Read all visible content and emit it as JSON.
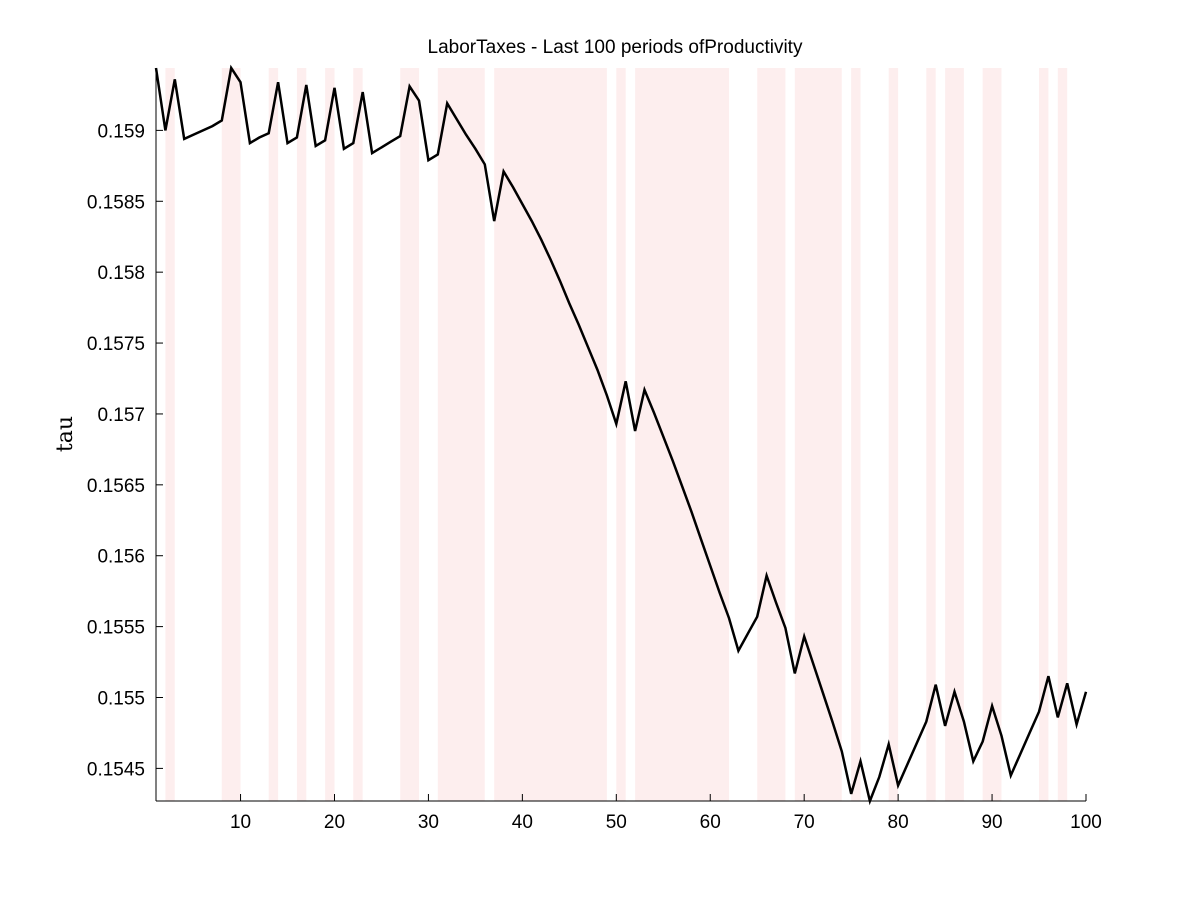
{
  "chart_data": {
    "type": "line",
    "title": "LaborTaxes - Last 100 periods ofProductivity",
    "xlabel": "",
    "ylabel": "tau",
    "xlim": [
      1,
      100
    ],
    "ylim": [
      0.15427,
      0.15944
    ],
    "x_ticks": [
      10,
      20,
      30,
      40,
      50,
      60,
      70,
      80,
      90,
      100
    ],
    "y_ticks": [
      0.1545,
      0.155,
      0.1555,
      0.156,
      0.1565,
      0.157,
      0.1575,
      0.158,
      0.1585,
      0.159
    ],
    "grid": false,
    "legend": "none",
    "line_color": "#000000",
    "shade_color": "#fdeeee",
    "shaded_periods": [
      [
        2,
        3
      ],
      [
        8,
        10
      ],
      [
        13,
        14
      ],
      [
        16,
        17
      ],
      [
        19,
        20
      ],
      [
        22,
        23
      ],
      [
        27,
        29
      ],
      [
        31,
        36
      ],
      [
        37,
        49
      ],
      [
        50,
        51
      ],
      [
        52,
        62
      ],
      [
        65,
        68
      ],
      [
        69,
        74
      ],
      [
        75,
        76
      ],
      [
        79,
        80
      ],
      [
        83,
        84
      ],
      [
        85,
        87
      ],
      [
        89,
        91
      ],
      [
        95,
        96
      ],
      [
        97,
        98
      ]
    ],
    "x": [
      1,
      2,
      3,
      4,
      5,
      6,
      7,
      8,
      9,
      10,
      11,
      12,
      13,
      14,
      15,
      16,
      17,
      18,
      19,
      20,
      21,
      22,
      23,
      24,
      25,
      26,
      27,
      28,
      29,
      30,
      31,
      32,
      33,
      34,
      35,
      36,
      37,
      38,
      39,
      40,
      41,
      42,
      43,
      44,
      45,
      46,
      47,
      48,
      49,
      50,
      51,
      52,
      53,
      54,
      55,
      56,
      57,
      58,
      59,
      60,
      61,
      62,
      63,
      64,
      65,
      66,
      67,
      68,
      69,
      70,
      71,
      72,
      73,
      74,
      75,
      76,
      77,
      78,
      79,
      80,
      81,
      82,
      83,
      84,
      85,
      86,
      87,
      88,
      89,
      90,
      91,
      92,
      93,
      94,
      95,
      96,
      97,
      98,
      99,
      100
    ],
    "values": [
      0.15944,
      0.159,
      0.15936,
      0.15894,
      0.15897,
      0.159,
      0.15903,
      0.15907,
      0.15944,
      0.15934,
      0.15891,
      0.15895,
      0.15898,
      0.15934,
      0.15891,
      0.15895,
      0.15932,
      0.15889,
      0.15893,
      0.1593,
      0.15887,
      0.15891,
      0.15927,
      0.15884,
      0.15888,
      0.15892,
      0.15896,
      0.15931,
      0.15921,
      0.15879,
      0.15883,
      0.15919,
      0.15908,
      0.15897,
      0.15887,
      0.15876,
      0.15836,
      0.15871,
      0.1586,
      0.15848,
      0.15836,
      0.15823,
      0.15809,
      0.15794,
      0.15778,
      0.15763,
      0.15747,
      0.15731,
      0.15713,
      0.15693,
      0.15723,
      0.15688,
      0.15717,
      0.15701,
      0.15684,
      0.15667,
      0.15649,
      0.15631,
      0.15612,
      0.15593,
      0.15574,
      0.15556,
      0.15533,
      0.15545,
      0.15557,
      0.15586,
      0.15567,
      0.15549,
      0.15517,
      0.15543,
      0.15523,
      0.15503,
      0.15483,
      0.15462,
      0.15432,
      0.15455,
      0.15427,
      0.15444,
      0.15467,
      0.15438,
      0.15453,
      0.15468,
      0.15483,
      0.15509,
      0.1548,
      0.15504,
      0.15483,
      0.15455,
      0.15469,
      0.15494,
      0.15473,
      0.15445,
      0.1546,
      0.15475,
      0.1549,
      0.15515,
      0.15486,
      0.1551,
      0.15481,
      0.15504
    ]
  }
}
